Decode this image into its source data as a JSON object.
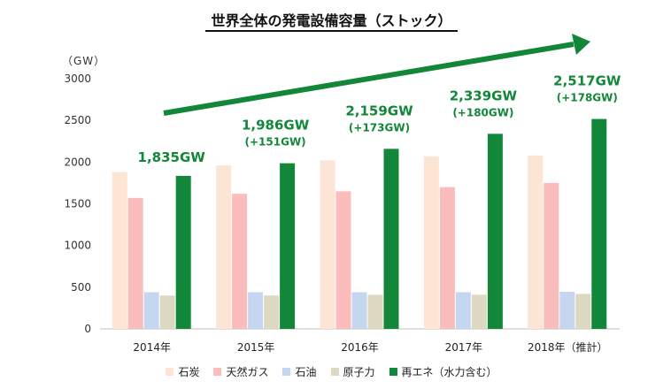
{
  "title": "世界全体の発電設備容量（ストック）",
  "unit_label": "（GW）",
  "colors": {
    "coal": "#fde5d6",
    "gas": "#fbbcbc",
    "oil": "#c5d7f0",
    "nuclear": "#ddd8c2",
    "renewable": "#12873a",
    "annotation": "#12873a",
    "axis": "#bfbfbf"
  },
  "chart_data": {
    "type": "bar",
    "categories": [
      "2014年",
      "2015年",
      "2016年",
      "2017年",
      "2018年（推計）"
    ],
    "series": [
      {
        "name": "石炭",
        "key": "coal",
        "values": [
          1880,
          1960,
          2020,
          2070,
          2080
        ]
      },
      {
        "name": "天然ガス",
        "key": "gas",
        "values": [
          1570,
          1620,
          1650,
          1700,
          1750
        ]
      },
      {
        "name": "石油",
        "key": "oil",
        "values": [
          440,
          440,
          440,
          440,
          445
        ]
      },
      {
        "name": "原子力",
        "key": "nuclear",
        "values": [
          400,
          400,
          410,
          410,
          420
        ]
      },
      {
        "name": "再エネ（水力含む）",
        "key": "renewable",
        "values": [
          1835,
          1986,
          2159,
          2339,
          2517
        ]
      }
    ],
    "ylim": [
      0,
      3000
    ],
    "yticks": [
      0,
      500,
      1000,
      1500,
      2000,
      2500,
      3000
    ],
    "annotations": [
      {
        "total": "1,835GW",
        "delta": ""
      },
      {
        "total": "1,986GW",
        "delta": "(+151GW)"
      },
      {
        "total": "2,159GW",
        "delta": "(+173GW)"
      },
      {
        "total": "2,339GW",
        "delta": "(+180GW)"
      },
      {
        "total": "2,517GW",
        "delta": "(+178GW)"
      }
    ],
    "trend_arrow": true,
    "legend_position": "bottom"
  }
}
